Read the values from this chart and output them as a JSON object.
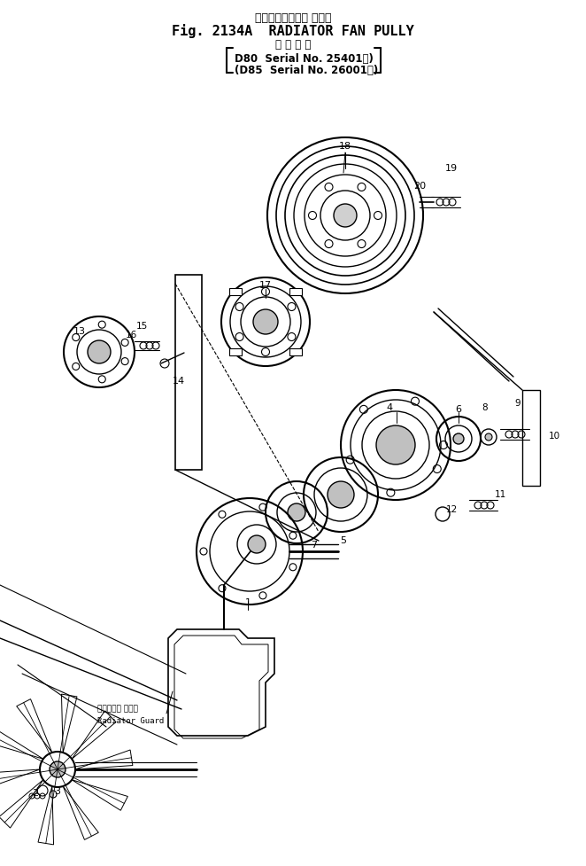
{
  "title_jp": "ラジエータファン プーリ",
  "title_en": "Fig. 2134A  RADIATOR FAN PULLY",
  "subtitle_jp": "適 用 号 機",
  "subtitle_line1": "D80  Serial No. 25401～)",
  "subtitle_line2": "(D85  Serial No. 26001～)",
  "bg_color": "#ffffff",
  "line_color": "#000000",
  "fig_width": 6.62,
  "fig_height": 9.77
}
